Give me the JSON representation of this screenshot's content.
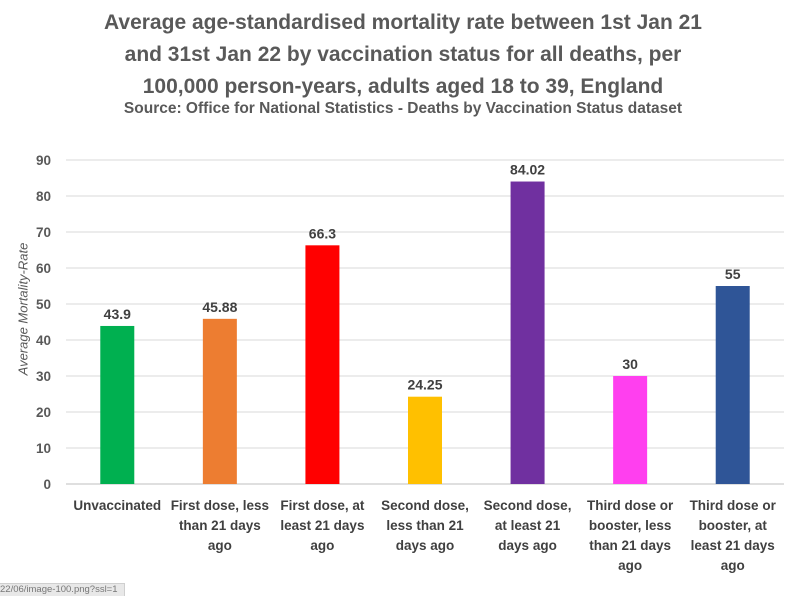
{
  "chart_data": {
    "type": "bar",
    "title": [
      "Average age-standardised mortality rate between 1st Jan 21",
      "and  31st Jan 22 by vaccination status for all deaths, per",
      "100,000 person-years, adults aged 18 to 39, England"
    ],
    "subtitle": "Source: Office for National Statistics - Deaths by Vaccination Status dataset",
    "xlabel": "",
    "ylabel": "Average Mortality-Rate",
    "ylim": [
      0,
      90
    ],
    "yticks": [
      "0",
      "10",
      "20",
      "30",
      "40",
      "50",
      "60",
      "70",
      "80",
      "90"
    ],
    "grid": true,
    "legend": "none",
    "categories": [
      [
        "Unvaccinated"
      ],
      [
        "First dose, less",
        "than 21 days",
        "ago"
      ],
      [
        "First dose, at",
        "least 21 days",
        "ago"
      ],
      [
        "Second dose,",
        "less than 21",
        "days ago"
      ],
      [
        "Second dose,",
        "at least 21",
        "days ago"
      ],
      [
        "Third dose or",
        "booster, less",
        "than 21 days",
        "ago"
      ],
      [
        "Third dose or",
        "booster, at",
        "least 21 days",
        "ago"
      ]
    ],
    "values": [
      43.9,
      45.88,
      66.3,
      24.25,
      84.02,
      30,
      55
    ],
    "value_labels": [
      "43.9",
      "45.88",
      "66.3",
      "24.25",
      "84.02",
      "30",
      "55"
    ],
    "colors": [
      "#00b050",
      "#ed7d31",
      "#ff0000",
      "#ffc000",
      "#7030a0",
      "#ff3fef",
      "#2f5597"
    ]
  },
  "url_fragment": "22/06/image-100.png?ssl=1"
}
